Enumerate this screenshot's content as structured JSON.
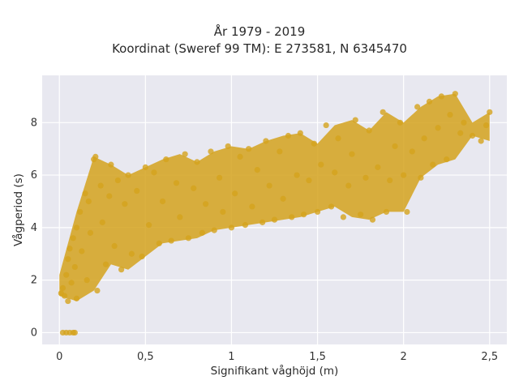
{
  "chart_data": {
    "type": "scatter",
    "title": "År 1979 - 2019",
    "subtitle": "Koordinat (Sweref 99 TM): E 273581, N 6345470",
    "xlabel": "Signifikant våghöjd (m)",
    "ylabel": "Vågperiod (s)",
    "xlim": [
      -0.1,
      2.6
    ],
    "ylim": [
      -0.45,
      9.8
    ],
    "x_ticks": [
      0,
      0.5,
      1,
      1.5,
      2,
      2.5
    ],
    "x_tick_labels": [
      "0",
      "0,5",
      "1",
      "1,5",
      "2",
      "2,5"
    ],
    "y_ticks": [
      0,
      2,
      4,
      6,
      8
    ],
    "y_tick_labels": [
      "0",
      "2",
      "4",
      "6",
      "8"
    ],
    "grid": true,
    "marker_color": "#D4A21D",
    "background_color": "#E8E8F0",
    "points": [
      [
        0.02,
        0.0
      ],
      [
        0.04,
        0.0
      ],
      [
        0.06,
        0.0
      ],
      [
        0.08,
        0.0
      ],
      [
        0.09,
        0.0
      ],
      [
        0.01,
        1.5
      ],
      [
        0.02,
        1.7
      ],
      [
        0.03,
        1.4
      ],
      [
        0.04,
        2.2
      ],
      [
        0.05,
        1.2
      ],
      [
        0.05,
        2.8
      ],
      [
        0.06,
        3.2
      ],
      [
        0.07,
        1.9
      ],
      [
        0.08,
        3.6
      ],
      [
        0.09,
        2.5
      ],
      [
        0.1,
        1.3
      ],
      [
        0.1,
        4.0
      ],
      [
        0.12,
        4.6
      ],
      [
        0.13,
        3.1
      ],
      [
        0.15,
        5.3
      ],
      [
        0.16,
        2.0
      ],
      [
        0.17,
        5.0
      ],
      [
        0.18,
        3.8
      ],
      [
        0.2,
        6.6
      ],
      [
        0.21,
        6.7
      ],
      [
        0.22,
        1.6
      ],
      [
        0.24,
        5.6
      ],
      [
        0.25,
        4.2
      ],
      [
        0.27,
        2.6
      ],
      [
        0.29,
        5.2
      ],
      [
        0.3,
        6.4
      ],
      [
        0.32,
        3.3
      ],
      [
        0.34,
        5.8
      ],
      [
        0.36,
        2.4
      ],
      [
        0.38,
        4.9
      ],
      [
        0.4,
        6.0
      ],
      [
        0.42,
        3.0
      ],
      [
        0.45,
        5.4
      ],
      [
        0.48,
        2.9
      ],
      [
        0.5,
        6.3
      ],
      [
        0.52,
        4.1
      ],
      [
        0.55,
        6.1
      ],
      [
        0.58,
        3.4
      ],
      [
        0.6,
        5.0
      ],
      [
        0.62,
        6.6
      ],
      [
        0.65,
        3.5
      ],
      [
        0.68,
        5.7
      ],
      [
        0.7,
        4.4
      ],
      [
        0.73,
        6.8
      ],
      [
        0.75,
        3.6
      ],
      [
        0.78,
        5.5
      ],
      [
        0.8,
        6.5
      ],
      [
        0.83,
        3.8
      ],
      [
        0.85,
        4.9
      ],
      [
        0.88,
        6.9
      ],
      [
        0.9,
        3.9
      ],
      [
        0.93,
        5.9
      ],
      [
        0.95,
        4.6
      ],
      [
        0.98,
        7.1
      ],
      [
        1.0,
        4.0
      ],
      [
        1.02,
        5.3
      ],
      [
        1.05,
        6.7
      ],
      [
        1.08,
        4.1
      ],
      [
        1.1,
        7.0
      ],
      [
        1.12,
        4.8
      ],
      [
        1.15,
        6.2
      ],
      [
        1.18,
        4.2
      ],
      [
        1.2,
        7.3
      ],
      [
        1.22,
        5.6
      ],
      [
        1.25,
        4.3
      ],
      [
        1.28,
        6.9
      ],
      [
        1.3,
        5.1
      ],
      [
        1.33,
        7.5
      ],
      [
        1.35,
        4.4
      ],
      [
        1.38,
        6.0
      ],
      [
        1.4,
        7.6
      ],
      [
        1.42,
        4.5
      ],
      [
        1.45,
        5.8
      ],
      [
        1.48,
        7.2
      ],
      [
        1.5,
        4.6
      ],
      [
        1.52,
        6.4
      ],
      [
        1.55,
        7.9
      ],
      [
        1.58,
        4.8
      ],
      [
        1.6,
        6.1
      ],
      [
        1.62,
        7.4
      ],
      [
        1.65,
        4.4
      ],
      [
        1.68,
        5.6
      ],
      [
        1.7,
        6.8
      ],
      [
        1.72,
        8.1
      ],
      [
        1.75,
        4.5
      ],
      [
        1.78,
        5.9
      ],
      [
        1.8,
        7.7
      ],
      [
        1.82,
        4.3
      ],
      [
        1.85,
        6.3
      ],
      [
        1.88,
        8.4
      ],
      [
        1.9,
        4.6
      ],
      [
        1.92,
        5.8
      ],
      [
        1.95,
        7.1
      ],
      [
        1.98,
        8.0
      ],
      [
        2.0,
        6.0
      ],
      [
        2.02,
        4.6
      ],
      [
        2.05,
        6.9
      ],
      [
        2.08,
        8.6
      ],
      [
        2.1,
        5.9
      ],
      [
        2.12,
        7.4
      ],
      [
        2.15,
        8.8
      ],
      [
        2.17,
        6.4
      ],
      [
        2.2,
        7.8
      ],
      [
        2.22,
        9.0
      ],
      [
        2.25,
        6.6
      ],
      [
        2.27,
        8.3
      ],
      [
        2.3,
        9.1
      ],
      [
        2.33,
        7.6
      ],
      [
        2.35,
        8.0
      ],
      [
        2.4,
        7.5
      ],
      [
        2.45,
        7.3
      ],
      [
        2.48,
        7.9
      ],
      [
        2.5,
        8.4
      ]
    ]
  }
}
